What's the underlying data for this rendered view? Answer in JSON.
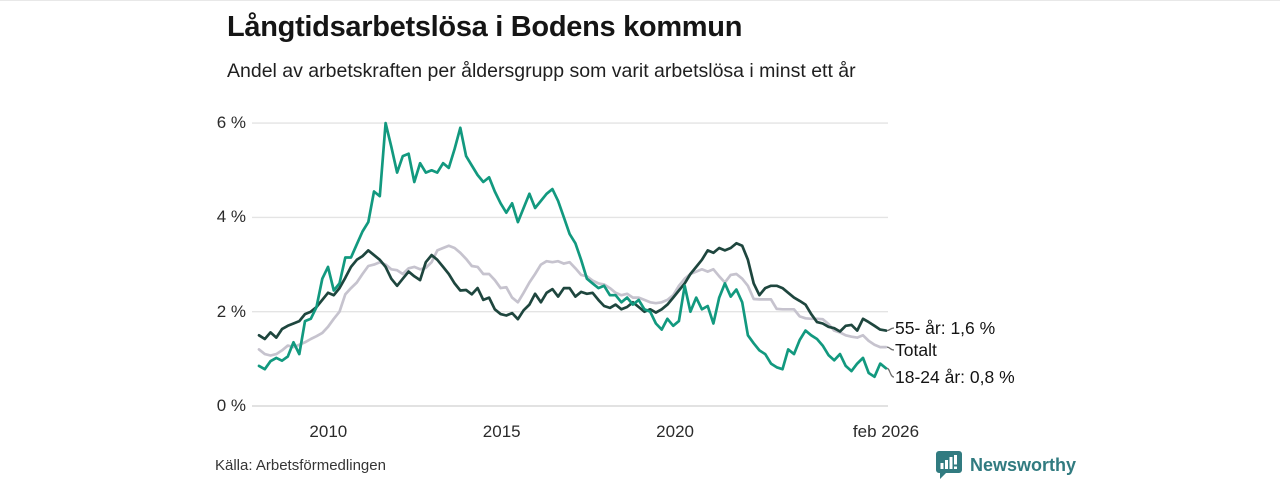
{
  "header": {
    "title": "Långtidsarbetslösa i Bodens kommun",
    "subtitle": "Andel av arbetskraften per åldersgrupp som varit arbetslösa i minst ett år"
  },
  "footer": {
    "source": "Källa: Arbetsförmedlingen",
    "brand": {
      "name": "Newsworthy",
      "color": "#317b80",
      "icon": "newsworthy-bar-chart-bubble-icon"
    }
  },
  "colors": {
    "series_55": "#1e463e",
    "series_total": "#c6c3ce",
    "series_1824": "#12997f",
    "gridline": "#e4e4e4",
    "gridline_zero": "#d8d8d8",
    "connector": "#6b6b6b",
    "text": "#141414"
  },
  "chart_data": {
    "type": "line",
    "title": "Långtidsarbetslösa i Bodens kommun",
    "subtitle": "Andel av arbetskraften per åldersgrupp som varit arbetslösa i minst ett år",
    "x_unit": "year (monthly series, sampled every 2 months)",
    "x_range": [
      2008.0,
      2026.083
    ],
    "ylim": [
      0,
      6.35
    ],
    "grid": true,
    "legend_position": "right-end-labels",
    "y_ticks": [
      {
        "v": 6,
        "label": "6 %"
      },
      {
        "v": 4,
        "label": "4 %"
      },
      {
        "v": 2,
        "label": "2 %"
      },
      {
        "v": 0,
        "label": "0 %"
      }
    ],
    "x_ticks": [
      {
        "t": 2010,
        "label": "2010"
      },
      {
        "t": 2015,
        "label": "2015"
      },
      {
        "t": 2020,
        "label": "2020"
      },
      {
        "t": 2026.083,
        "label": "feb 2026"
      }
    ],
    "series": [
      {
        "name": "55- år",
        "label": "55- år: 1,6 %",
        "last_value": "1,6 %",
        "color": "#1e463e",
        "values": [
          1.5,
          1.42,
          1.56,
          1.45,
          1.63,
          1.7,
          1.75,
          1.8,
          1.95,
          2.0,
          2.1,
          2.25,
          2.4,
          2.35,
          2.5,
          2.72,
          2.95,
          3.1,
          3.18,
          3.3,
          3.2,
          3.1,
          2.95,
          2.7,
          2.55,
          2.7,
          2.85,
          2.75,
          2.67,
          3.05,
          3.2,
          3.1,
          2.95,
          2.8,
          2.6,
          2.45,
          2.46,
          2.37,
          2.5,
          2.25,
          2.3,
          2.05,
          1.95,
          1.92,
          1.97,
          1.84,
          2.03,
          2.15,
          2.38,
          2.2,
          2.4,
          2.48,
          2.32,
          2.5,
          2.5,
          2.32,
          2.42,
          2.38,
          2.4,
          2.25,
          2.12,
          2.08,
          2.15,
          2.05,
          2.1,
          2.2,
          2.1,
          2.0,
          2.05,
          1.98,
          2.05,
          2.15,
          2.3,
          2.45,
          2.6,
          2.8,
          2.95,
          3.1,
          3.3,
          3.25,
          3.35,
          3.3,
          3.35,
          3.45,
          3.4,
          3.1,
          2.6,
          2.35,
          2.5,
          2.55,
          2.55,
          2.5,
          2.4,
          2.3,
          2.23,
          2.15,
          1.95,
          1.78,
          1.75,
          1.68,
          1.65,
          1.58,
          1.7,
          1.72,
          1.6,
          1.85,
          1.78,
          1.7,
          1.62,
          1.6
        ]
      },
      {
        "name": "Totalt",
        "label": "Totalt",
        "last_value": "",
        "color": "#c6c3ce",
        "values": [
          1.2,
          1.1,
          1.07,
          1.1,
          1.18,
          1.28,
          1.25,
          1.3,
          1.35,
          1.42,
          1.48,
          1.55,
          1.68,
          1.85,
          2.0,
          2.37,
          2.5,
          2.62,
          2.8,
          2.97,
          3.0,
          3.05,
          3.0,
          2.9,
          2.88,
          2.8,
          2.92,
          2.95,
          2.9,
          2.93,
          3.05,
          3.3,
          3.35,
          3.4,
          3.35,
          3.25,
          3.12,
          2.97,
          2.95,
          2.8,
          2.8,
          2.67,
          2.5,
          2.52,
          2.3,
          2.2,
          2.4,
          2.62,
          2.8,
          3.0,
          3.07,
          3.05,
          3.07,
          3.02,
          3.05,
          2.92,
          2.78,
          2.75,
          2.66,
          2.6,
          2.58,
          2.5,
          2.4,
          2.35,
          2.38,
          2.3,
          2.3,
          2.25,
          2.2,
          2.18,
          2.2,
          2.25,
          2.35,
          2.55,
          2.7,
          2.8,
          2.85,
          2.9,
          2.85,
          2.9,
          2.75,
          2.62,
          2.78,
          2.8,
          2.7,
          2.55,
          2.27,
          2.26,
          2.26,
          2.26,
          2.06,
          2.05,
          2.05,
          2.05,
          1.9,
          1.86,
          1.85,
          1.85,
          1.84,
          1.74,
          1.6,
          1.56,
          1.5,
          1.47,
          1.45,
          1.5,
          1.38,
          1.3,
          1.25,
          1.25
        ]
      },
      {
        "name": "18-24 år",
        "label": "18-24 år: 0,8 %",
        "last_value": "0,8 %",
        "color": "#12997f",
        "values": [
          0.85,
          0.78,
          0.95,
          1.02,
          0.96,
          1.05,
          1.35,
          1.1,
          1.8,
          1.85,
          2.1,
          2.7,
          2.95,
          2.45,
          2.6,
          3.15,
          3.15,
          3.43,
          3.7,
          3.9,
          4.55,
          4.45,
          6.0,
          5.5,
          4.95,
          5.3,
          5.35,
          4.75,
          5.15,
          4.95,
          5.0,
          4.95,
          5.15,
          5.05,
          5.45,
          5.9,
          5.3,
          5.1,
          4.9,
          4.75,
          4.85,
          4.55,
          4.3,
          4.1,
          4.3,
          3.9,
          4.2,
          4.5,
          4.2,
          4.35,
          4.5,
          4.6,
          4.35,
          4.0,
          3.65,
          3.45,
          3.1,
          2.7,
          2.6,
          2.5,
          2.55,
          2.35,
          2.35,
          2.2,
          2.3,
          2.15,
          2.25,
          2.05,
          2.0,
          1.75,
          1.62,
          1.85,
          1.7,
          1.8,
          2.55,
          2.0,
          2.3,
          2.05,
          2.12,
          1.75,
          2.3,
          2.6,
          2.32,
          2.47,
          2.2,
          1.5,
          1.33,
          1.18,
          1.1,
          0.9,
          0.82,
          0.78,
          1.2,
          1.1,
          1.4,
          1.6,
          1.5,
          1.42,
          1.28,
          1.08,
          0.97,
          1.1,
          0.85,
          0.74,
          0.9,
          1.02,
          0.7,
          0.62,
          0.9,
          0.8
        ]
      }
    ]
  }
}
